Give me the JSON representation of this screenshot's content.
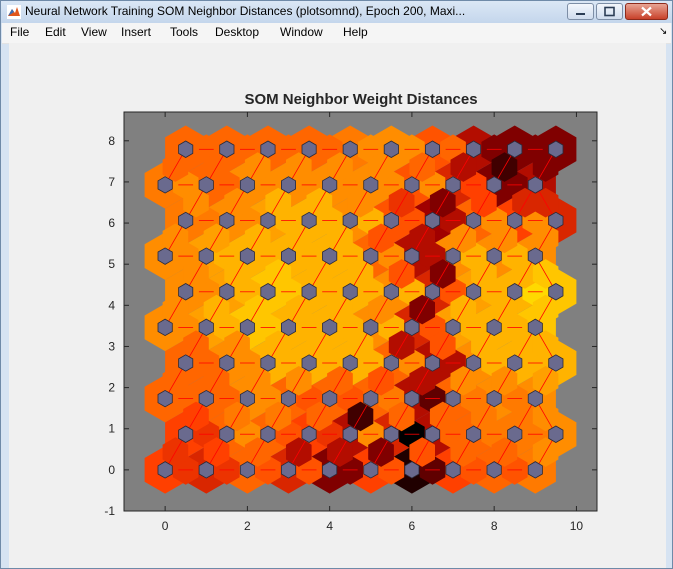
{
  "window": {
    "title": "Neural Network Training SOM Neighbor Distances (plotsomnd), Epoch 200, Maxi...",
    "buttons": [
      "minimize-icon",
      "maximize-icon",
      "close-icon"
    ]
  },
  "menu": {
    "items": [
      "File",
      "Edit",
      "View",
      "Insert",
      "Tools",
      "Desktop",
      "Window",
      "Help"
    ],
    "dock_arrow": "↘"
  },
  "colors": {
    "axes_background": "#808080",
    "neuron_fill": "#6a6a8e",
    "distance_scale": [
      "#ffff00",
      "#ffa000",
      "#ff4000",
      "#a00000",
      "#000000"
    ]
  },
  "chart_data": {
    "type": "heatmap",
    "title": "SOM Neighbor Weight Distances",
    "xlabel": "",
    "ylabel": "",
    "xlim": [
      -1,
      10.5
    ],
    "ylim": [
      -1,
      8.7
    ],
    "xticks": [
      0,
      2,
      4,
      6,
      8,
      10
    ],
    "yticks": [
      -1,
      0,
      1,
      2,
      3,
      4,
      5,
      6,
      7,
      8
    ],
    "grid": {
      "columns": 10,
      "rows": 10,
      "topology": "hexagonal"
    },
    "neuron_positions_note": "row r, column c at x = c + 0.5*(r mod 2), y = r*0.866",
    "distances": {
      "horizontal": [
        [
          0.55,
          0.55,
          0.45,
          0.45,
          0.8,
          0.45,
          0.85,
          0.45,
          0.45
        ],
        [
          0.55,
          0.3,
          0.45,
          0.55,
          0.3,
          1.0,
          0.4,
          0.35,
          0.35
        ],
        [
          0.4,
          0.4,
          0.3,
          0.45,
          0.45,
          0.35,
          0.85,
          0.35,
          0.35
        ],
        [
          0.4,
          0.3,
          0.2,
          0.2,
          0.2,
          0.3,
          0.7,
          0.2,
          0.2
        ],
        [
          0.3,
          0.2,
          0.15,
          0.2,
          0.2,
          0.2,
          0.45,
          0.2,
          0.2
        ],
        [
          0.3,
          0.2,
          0.15,
          0.2,
          0.2,
          0.2,
          0.45,
          0.2,
          0.1
        ],
        [
          0.3,
          0.2,
          0.2,
          0.2,
          0.2,
          0.3,
          0.7,
          0.2,
          0.2
        ],
        [
          0.35,
          0.3,
          0.2,
          0.2,
          0.2,
          0.45,
          0.7,
          0.3,
          0.3
        ],
        [
          0.3,
          0.4,
          0.3,
          0.3,
          0.3,
          0.3,
          0.3,
          0.5,
          0.8
        ],
        [
          0.4,
          0.4,
          0.4,
          0.4,
          0.3,
          0.3,
          0.4,
          0.8,
          0.8
        ]
      ],
      "vertical": [
        [
          0.55,
          0.5,
          0.4,
          0.7,
          0.7,
          0.8,
          0.45,
          0.4,
          0.4,
          0.3
        ],
        [
          0.5,
          0.35,
          0.35,
          0.4,
          0.9,
          0.4,
          0.4,
          0.35,
          0.35,
          0.3
        ],
        [
          0.4,
          0.4,
          0.3,
          0.3,
          0.4,
          0.45,
          0.7,
          0.3,
          0.3,
          0.25
        ],
        [
          0.4,
          0.3,
          0.2,
          0.2,
          0.2,
          0.7,
          0.45,
          0.2,
          0.2,
          0.2
        ],
        [
          0.3,
          0.2,
          0.15,
          0.2,
          0.2,
          0.3,
          0.8,
          0.2,
          0.2,
          0.15
        ],
        [
          0.3,
          0.2,
          0.15,
          0.2,
          0.2,
          0.45,
          0.8,
          0.2,
          0.2,
          0.15
        ],
        [
          0.3,
          0.25,
          0.2,
          0.2,
          0.2,
          0.45,
          0.7,
          0.3,
          0.3,
          0.3
        ],
        [
          0.3,
          0.3,
          0.2,
          0.2,
          0.3,
          0.55,
          0.8,
          0.5,
          0.6,
          0.6
        ],
        [
          0.4,
          0.4,
          0.3,
          0.3,
          0.3,
          0.3,
          0.4,
          0.7,
          0.9,
          0.8
        ]
      ],
      "neuron_color": [
        [
          0.5,
          0.6,
          0.4,
          0.6,
          0.8,
          0.5,
          0.95,
          0.5,
          0.4,
          0.35
        ],
        [
          0.5,
          0.4,
          0.4,
          0.5,
          0.7,
          0.6,
          0.7,
          0.4,
          0.35,
          0.3
        ],
        [
          0.4,
          0.4,
          0.3,
          0.4,
          0.4,
          0.4,
          0.7,
          0.4,
          0.3,
          0.3
        ],
        [
          0.4,
          0.3,
          0.2,
          0.2,
          0.2,
          0.4,
          0.7,
          0.3,
          0.2,
          0.2
        ],
        [
          0.3,
          0.25,
          0.15,
          0.2,
          0.2,
          0.3,
          0.6,
          0.25,
          0.2,
          0.15
        ],
        [
          0.3,
          0.25,
          0.15,
          0.2,
          0.2,
          0.3,
          0.6,
          0.25,
          0.2,
          0.15
        ],
        [
          0.3,
          0.25,
          0.2,
          0.2,
          0.2,
          0.4,
          0.7,
          0.3,
          0.3,
          0.3
        ],
        [
          0.35,
          0.3,
          0.25,
          0.2,
          0.3,
          0.45,
          0.75,
          0.4,
          0.5,
          0.6
        ],
        [
          0.35,
          0.4,
          0.3,
          0.3,
          0.3,
          0.3,
          0.45,
          0.6,
          0.8,
          0.7
        ],
        [
          0.4,
          0.4,
          0.4,
          0.4,
          0.35,
          0.3,
          0.45,
          0.7,
          0.8,
          0.8
        ]
      ]
    }
  }
}
